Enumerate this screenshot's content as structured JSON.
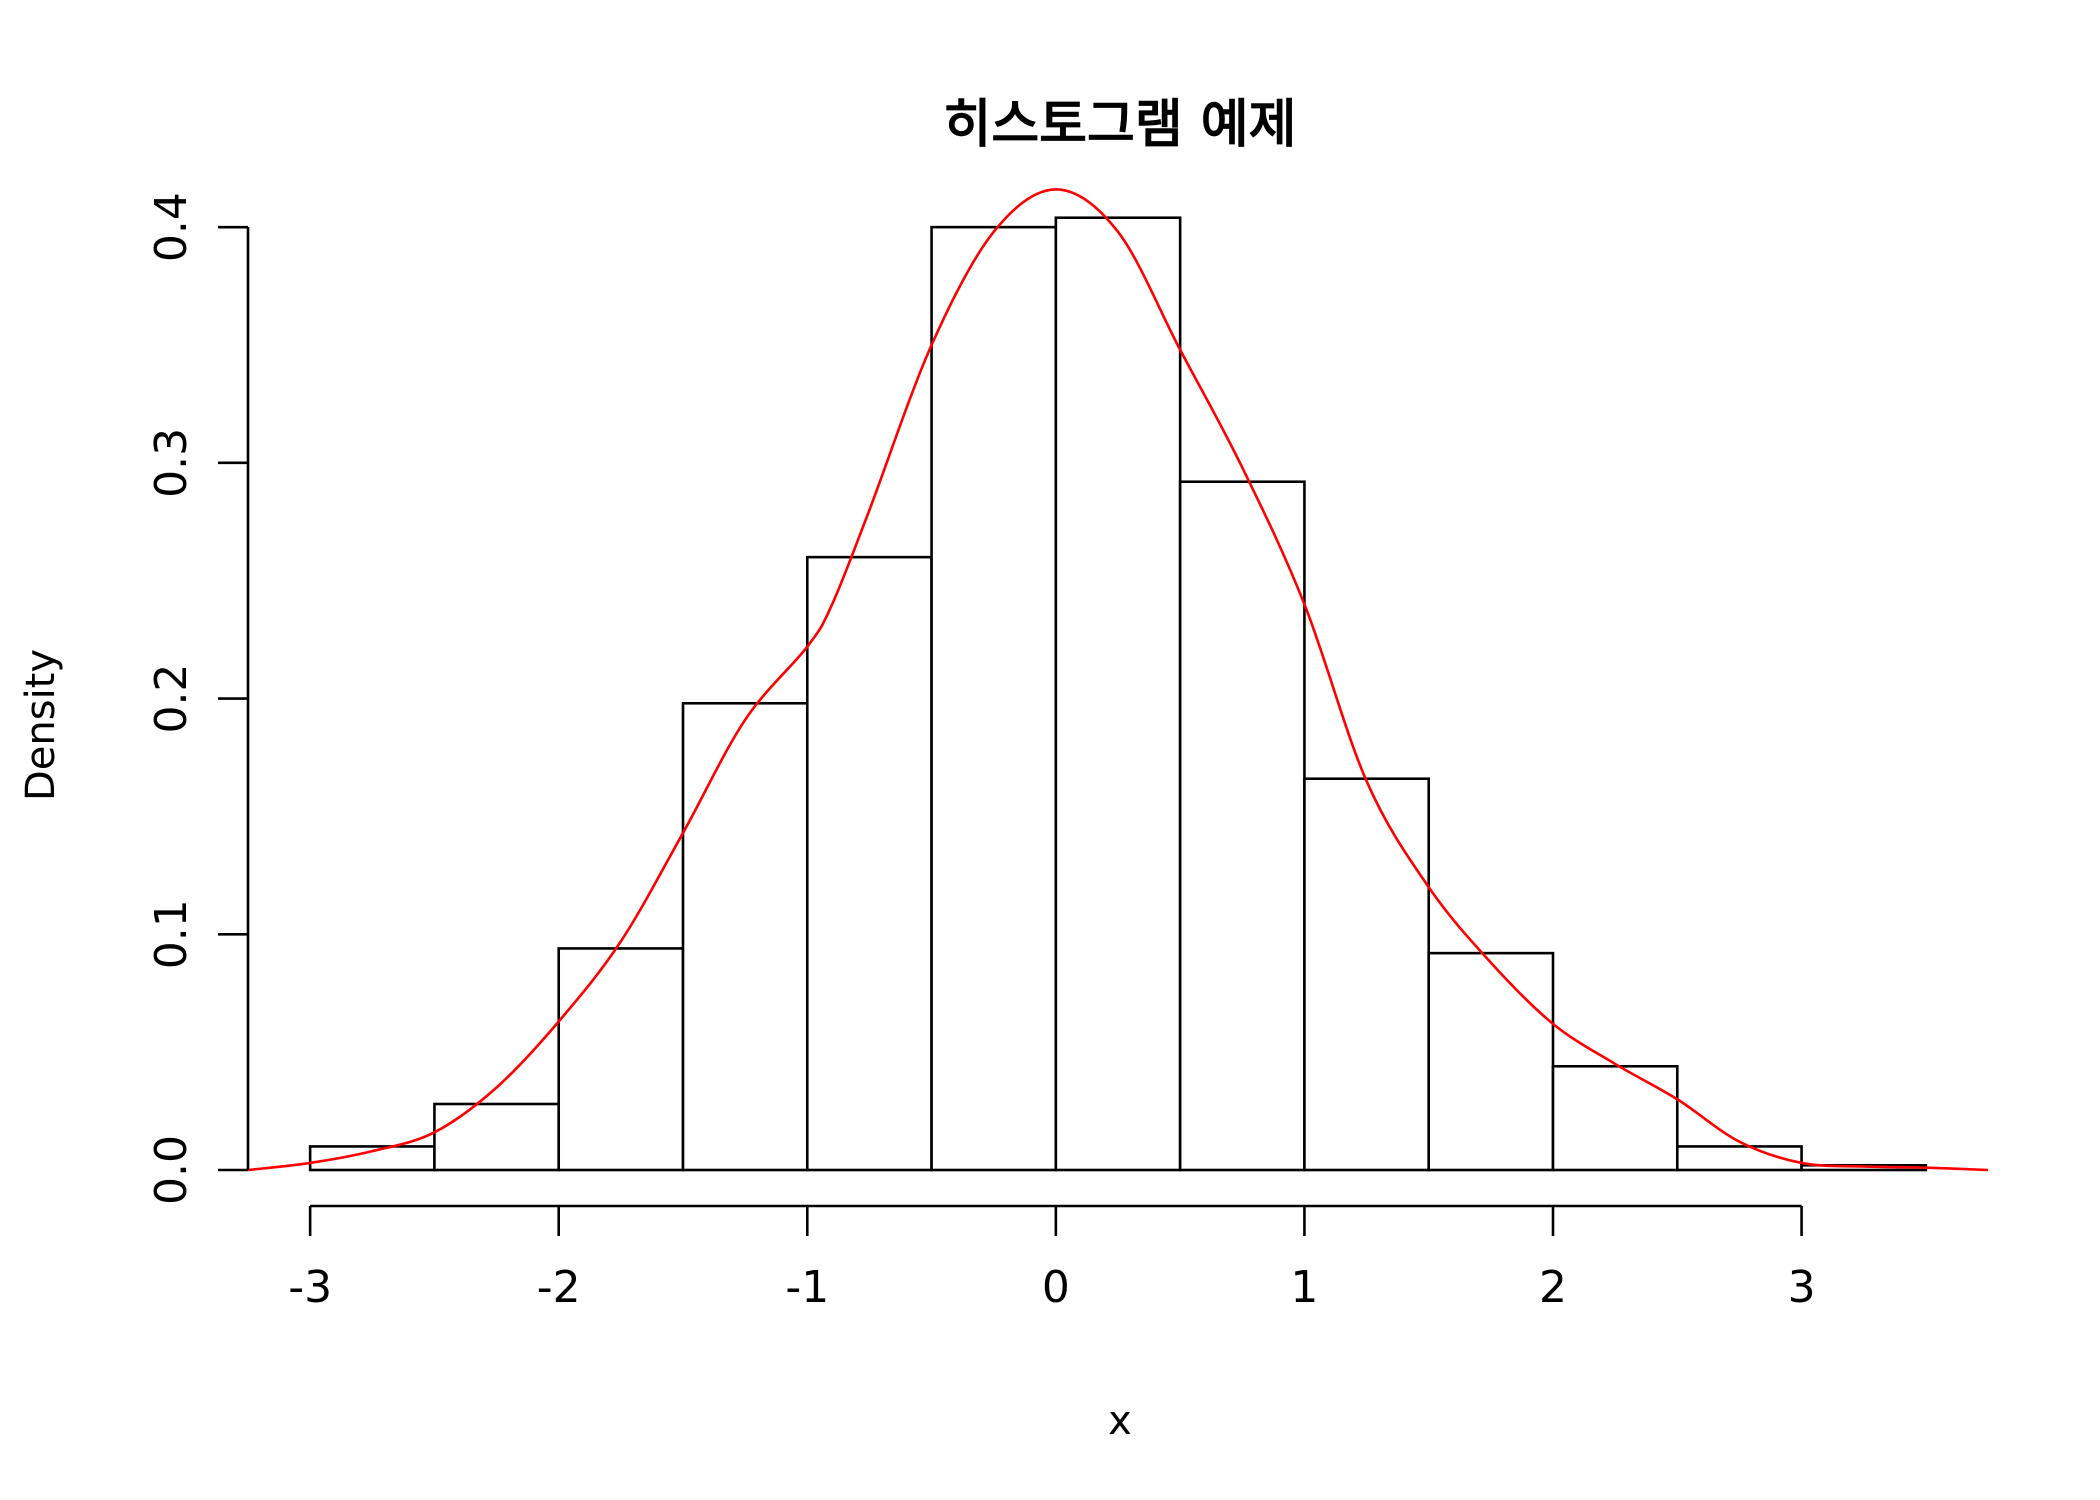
{
  "chart_data": {
    "type": "bar",
    "subtype": "histogram-with-density",
    "title": "히스토그램 예제",
    "xlabel": "x",
    "ylabel": "Density",
    "xlim": [
      -3.25,
      3.75
    ],
    "ylim": [
      0,
      0.42
    ],
    "x_ticks": [
      -3,
      -2,
      -1,
      0,
      1,
      2,
      3
    ],
    "x_tick_labels": [
      "-3",
      "-2",
      "-1",
      "0",
      "1",
      "2",
      "3"
    ],
    "y_ticks": [
      0.0,
      0.1,
      0.2,
      0.3,
      0.4
    ],
    "y_tick_labels": [
      "0.0",
      "0.1",
      "0.2",
      "0.3",
      "0.4"
    ],
    "bins": [
      {
        "x0": -3.0,
        "x1": -2.5,
        "density": 0.01
      },
      {
        "x0": -2.5,
        "x1": -2.0,
        "density": 0.028
      },
      {
        "x0": -2.0,
        "x1": -1.5,
        "density": 0.094
      },
      {
        "x0": -1.5,
        "x1": -1.0,
        "density": 0.198
      },
      {
        "x0": -1.0,
        "x1": -0.5,
        "density": 0.26
      },
      {
        "x0": -0.5,
        "x1": 0.0,
        "density": 0.4
      },
      {
        "x0": 0.0,
        "x1": 0.5,
        "density": 0.404
      },
      {
        "x0": 0.5,
        "x1": 1.0,
        "density": 0.292
      },
      {
        "x0": 1.0,
        "x1": 1.5,
        "density": 0.166
      },
      {
        "x0": 1.5,
        "x1": 2.0,
        "density": 0.092
      },
      {
        "x0": 2.0,
        "x1": 2.5,
        "density": 0.044
      },
      {
        "x0": 2.5,
        "x1": 3.0,
        "density": 0.01
      },
      {
        "x0": 3.0,
        "x1": 3.5,
        "density": 0.002
      }
    ],
    "density_curve": {
      "color": "#ff0000",
      "x": [
        -3.25,
        -3.0,
        -2.75,
        -2.5,
        -2.25,
        -2.0,
        -1.75,
        -1.5,
        -1.25,
        -1.0,
        -0.9,
        -0.75,
        -0.5,
        -0.25,
        0.0,
        0.25,
        0.5,
        0.75,
        1.0,
        1.25,
        1.5,
        1.75,
        2.0,
        2.25,
        2.5,
        2.75,
        3.0,
        3.25,
        3.5,
        3.75
      ],
      "y": [
        0.0,
        0.003,
        0.008,
        0.016,
        0.035,
        0.063,
        0.097,
        0.143,
        0.191,
        0.222,
        0.24,
        0.28,
        0.35,
        0.398,
        0.416,
        0.398,
        0.348,
        0.298,
        0.24,
        0.165,
        0.12,
        0.088,
        0.062,
        0.045,
        0.03,
        0.012,
        0.003,
        0.0015,
        0.001,
        0.0
      ]
    }
  }
}
